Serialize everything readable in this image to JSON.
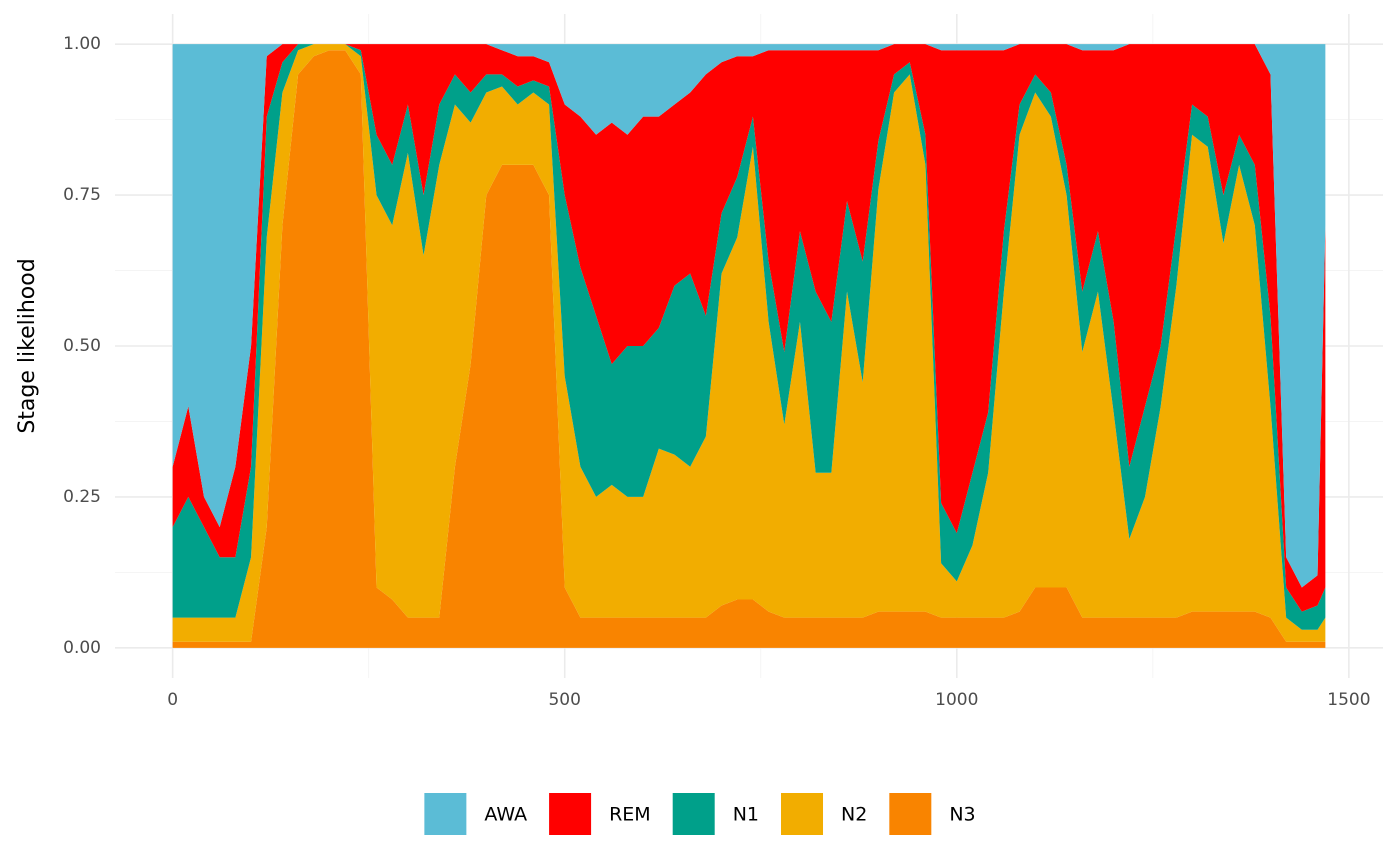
{
  "chart_data": {
    "type": "stacked_area",
    "y_label": "Stage likelihood",
    "x": [
      0,
      20,
      40,
      60,
      80,
      100,
      120,
      140,
      160,
      180,
      200,
      220,
      240,
      260,
      280,
      300,
      320,
      340,
      360,
      380,
      400,
      420,
      440,
      460,
      480,
      500,
      520,
      540,
      560,
      580,
      600,
      620,
      640,
      660,
      680,
      700,
      720,
      740,
      760,
      780,
      800,
      820,
      840,
      860,
      880,
      900,
      920,
      940,
      960,
      980,
      1000,
      1020,
      1040,
      1060,
      1080,
      1100,
      1120,
      1140,
      1160,
      1180,
      1200,
      1220,
      1240,
      1260,
      1280,
      1300,
      1320,
      1340,
      1360,
      1380,
      1400,
      1420,
      1440,
      1460,
      1470
    ],
    "series": [
      {
        "name": "AWA",
        "color": "#5BBCD6",
        "values": [
          0.7,
          0.6,
          0.75,
          0.8,
          0.7,
          0.5,
          0.02,
          0.0,
          0.0,
          0.0,
          0.0,
          0.0,
          0.0,
          0.0,
          0.0,
          0.0,
          0.0,
          0.0,
          0.0,
          0.0,
          0.0,
          0.01,
          0.02,
          0.02,
          0.03,
          0.1,
          0.12,
          0.15,
          0.13,
          0.15,
          0.12,
          0.12,
          0.1,
          0.08,
          0.05,
          0.03,
          0.02,
          0.02,
          0.01,
          0.01,
          0.01,
          0.01,
          0.01,
          0.01,
          0.01,
          0.01,
          0.0,
          0.0,
          0.0,
          0.01,
          0.01,
          0.01,
          0.01,
          0.01,
          0.0,
          0.0,
          0.0,
          0.0,
          0.01,
          0.01,
          0.01,
          0.0,
          0.0,
          0.0,
          0.0,
          0.0,
          0.0,
          0.0,
          0.0,
          0.0,
          0.05,
          0.85,
          0.9,
          0.88,
          0.3
        ]
      },
      {
        "name": "REM",
        "color": "#FF0000",
        "values": [
          0.1,
          0.15,
          0.05,
          0.05,
          0.15,
          0.2,
          0.1,
          0.03,
          0.0,
          0.0,
          0.0,
          0.0,
          0.01,
          0.15,
          0.2,
          0.1,
          0.25,
          0.1,
          0.05,
          0.08,
          0.05,
          0.04,
          0.05,
          0.04,
          0.04,
          0.15,
          0.25,
          0.3,
          0.4,
          0.35,
          0.38,
          0.35,
          0.3,
          0.3,
          0.4,
          0.25,
          0.2,
          0.1,
          0.35,
          0.5,
          0.3,
          0.4,
          0.45,
          0.25,
          0.35,
          0.15,
          0.05,
          0.03,
          0.15,
          0.75,
          0.8,
          0.7,
          0.6,
          0.3,
          0.1,
          0.05,
          0.08,
          0.2,
          0.4,
          0.3,
          0.45,
          0.7,
          0.6,
          0.5,
          0.3,
          0.1,
          0.12,
          0.25,
          0.15,
          0.2,
          0.4,
          0.05,
          0.04,
          0.05,
          0.6
        ]
      },
      {
        "name": "N1",
        "color": "#00A08A",
        "values": [
          0.15,
          0.2,
          0.15,
          0.1,
          0.1,
          0.15,
          0.2,
          0.05,
          0.01,
          0.0,
          0.0,
          0.0,
          0.01,
          0.1,
          0.1,
          0.08,
          0.1,
          0.1,
          0.05,
          0.05,
          0.03,
          0.02,
          0.03,
          0.02,
          0.03,
          0.3,
          0.33,
          0.3,
          0.2,
          0.25,
          0.25,
          0.2,
          0.28,
          0.32,
          0.2,
          0.1,
          0.1,
          0.05,
          0.1,
          0.12,
          0.15,
          0.3,
          0.25,
          0.15,
          0.2,
          0.08,
          0.03,
          0.02,
          0.05,
          0.1,
          0.08,
          0.12,
          0.1,
          0.1,
          0.05,
          0.03,
          0.04,
          0.05,
          0.1,
          0.1,
          0.15,
          0.12,
          0.15,
          0.1,
          0.1,
          0.05,
          0.05,
          0.08,
          0.05,
          0.1,
          0.15,
          0.05,
          0.03,
          0.04,
          0.05
        ]
      },
      {
        "name": "N2",
        "color": "#F2AD00",
        "values": [
          0.04,
          0.04,
          0.04,
          0.04,
          0.04,
          0.14,
          0.48,
          0.22,
          0.04,
          0.02,
          0.01,
          0.01,
          0.03,
          0.65,
          0.62,
          0.77,
          0.6,
          0.75,
          0.6,
          0.4,
          0.17,
          0.13,
          0.1,
          0.12,
          0.15,
          0.35,
          0.25,
          0.2,
          0.22,
          0.2,
          0.2,
          0.28,
          0.27,
          0.25,
          0.3,
          0.55,
          0.6,
          0.75,
          0.48,
          0.32,
          0.49,
          0.24,
          0.24,
          0.54,
          0.39,
          0.7,
          0.86,
          0.89,
          0.74,
          0.09,
          0.06,
          0.12,
          0.24,
          0.54,
          0.79,
          0.82,
          0.78,
          0.65,
          0.44,
          0.54,
          0.34,
          0.13,
          0.2,
          0.35,
          0.55,
          0.79,
          0.77,
          0.61,
          0.74,
          0.64,
          0.35,
          0.04,
          0.02,
          0.02,
          0.04
        ]
      },
      {
        "name": "N3",
        "color": "#F98400",
        "values": [
          0.01,
          0.01,
          0.01,
          0.01,
          0.01,
          0.01,
          0.2,
          0.7,
          0.95,
          0.98,
          0.99,
          0.99,
          0.95,
          0.1,
          0.08,
          0.05,
          0.05,
          0.05,
          0.3,
          0.47,
          0.75,
          0.8,
          0.8,
          0.8,
          0.75,
          0.1,
          0.05,
          0.05,
          0.05,
          0.05,
          0.05,
          0.05,
          0.05,
          0.05,
          0.05,
          0.07,
          0.08,
          0.08,
          0.06,
          0.05,
          0.05,
          0.05,
          0.05,
          0.05,
          0.05,
          0.06,
          0.06,
          0.06,
          0.06,
          0.05,
          0.05,
          0.05,
          0.05,
          0.05,
          0.06,
          0.1,
          0.1,
          0.1,
          0.05,
          0.05,
          0.05,
          0.05,
          0.05,
          0.05,
          0.05,
          0.06,
          0.06,
          0.06,
          0.06,
          0.06,
          0.05,
          0.01,
          0.01,
          0.01,
          0.01
        ]
      }
    ],
    "xlim": [
      -73.5,
      1543.5
    ],
    "ylim": [
      -0.05,
      1.05
    ],
    "xticks": [
      0,
      500,
      1000,
      1500
    ],
    "yticks": [
      {
        "value": 0,
        "label": "0.00"
      },
      {
        "value": 0.25,
        "label": "0.25"
      },
      {
        "value": 0.5,
        "label": "0.50"
      },
      {
        "value": 0.75,
        "label": "0.75"
      },
      {
        "value": 1,
        "label": "1.00"
      }
    ],
    "xminor": [
      250,
      750,
      1250
    ],
    "yminor": [
      0.125,
      0.375,
      0.625,
      0.875
    ],
    "grid": true,
    "legend": "bottom"
  }
}
